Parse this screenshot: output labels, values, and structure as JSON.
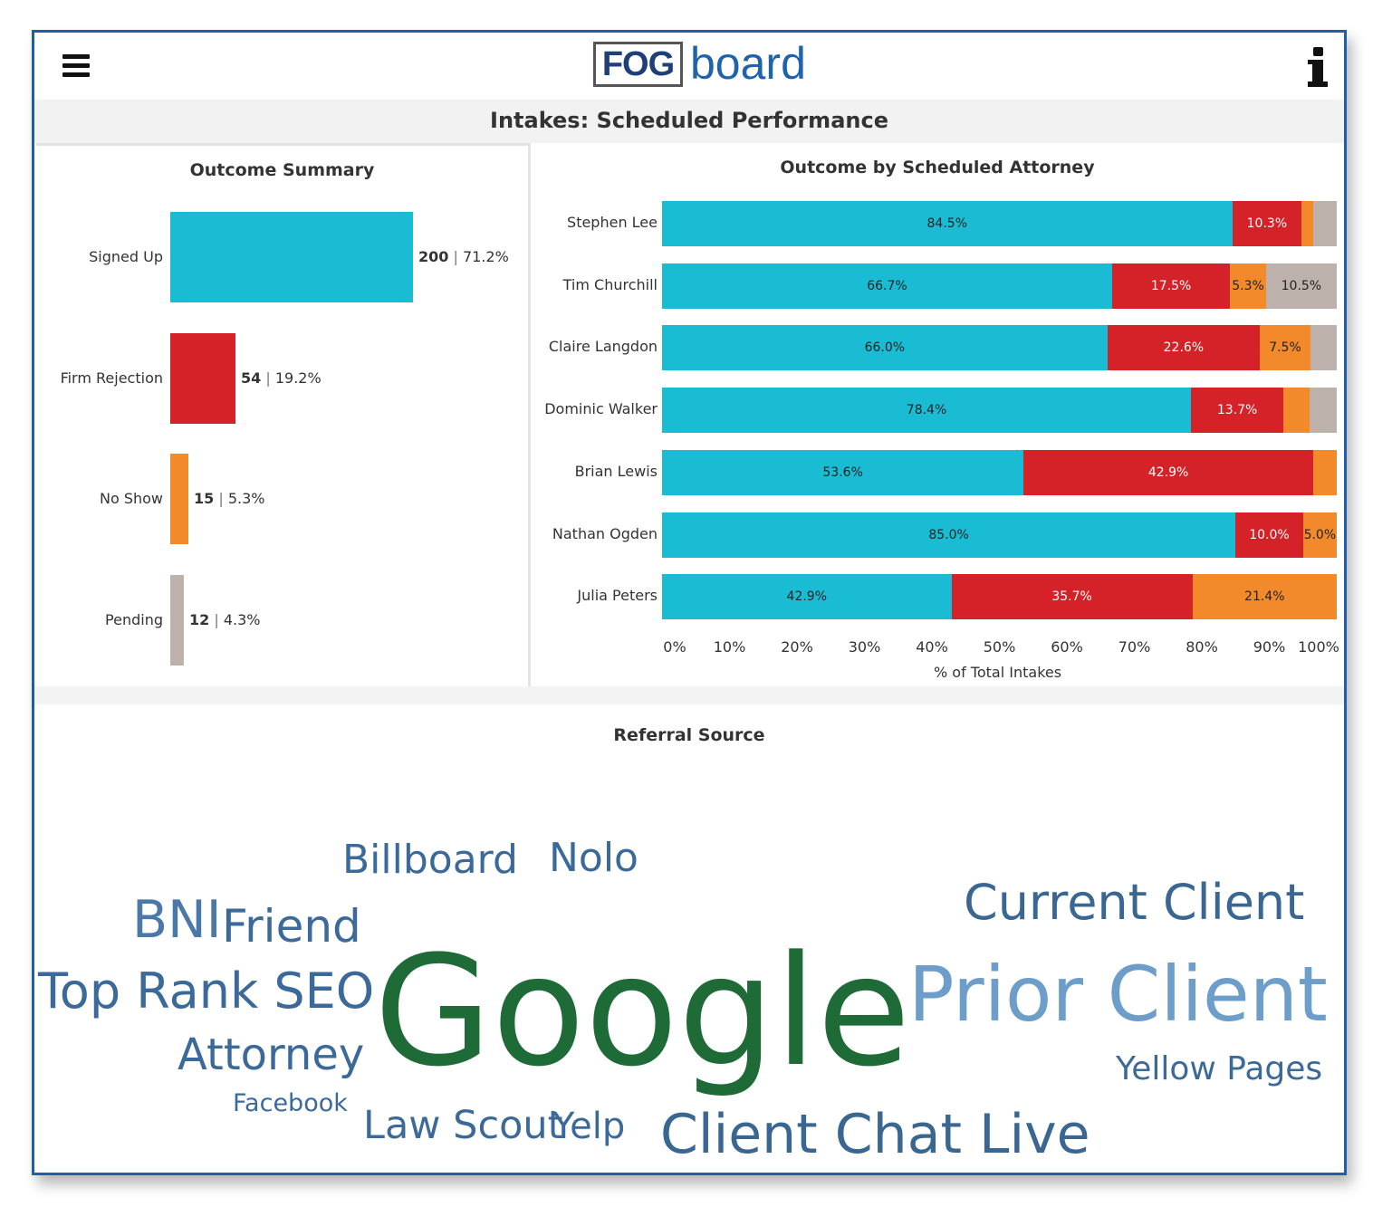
{
  "header": {
    "logo_box_text": "FOG",
    "logo_word": "board",
    "menu_icon": "hamburger-menu-icon",
    "info_icon": "info-icon"
  },
  "page_title": "Intakes: Scheduled Performance",
  "outcome_summary": {
    "title": "Outcome Summary",
    "rows": [
      {
        "label": "Signed Up",
        "count": "200",
        "pct": "71.2%",
        "color": "#19bcd3"
      },
      {
        "label": "Firm Rejection",
        "count": "54",
        "pct": "19.2%",
        "color": "#d52128"
      },
      {
        "label": "No Show",
        "count": "15",
        "pct": "5.3%",
        "color": "#f28a2b"
      },
      {
        "label": "Pending",
        "count": "12",
        "pct": "4.3%",
        "color": "#bdb1ab"
      }
    ]
  },
  "chart_data": [
    {
      "type": "bar",
      "orientation": "horizontal",
      "title": "Outcome Summary",
      "categories": [
        "Signed Up",
        "Firm Rejection",
        "No Show",
        "Pending"
      ],
      "values": [
        200,
        54,
        15,
        12
      ],
      "percents": [
        71.2,
        19.2,
        5.3,
        4.3
      ]
    },
    {
      "type": "bar",
      "orientation": "horizontal",
      "stacked": true,
      "title": "Outcome by Scheduled Attorney",
      "xlabel": "% of Total Intakes",
      "xlim": [
        0,
        100
      ],
      "xticks": [
        "0%",
        "10%",
        "20%",
        "30%",
        "40%",
        "50%",
        "60%",
        "70%",
        "80%",
        "90%",
        "100%"
      ],
      "categories": [
        "Stephen Lee",
        "Tim Churchill",
        "Claire Langdon",
        "Dominic Walker",
        "Brian Lewis",
        "Nathan Ogden",
        "Julia Peters"
      ],
      "series": [
        {
          "color": "#19bcd3",
          "values": [
            84.5,
            66.7,
            66.0,
            78.4,
            53.6,
            85.0,
            42.9
          ],
          "labels": [
            "84.5%",
            "66.7%",
            "66.0%",
            "78.4%",
            "53.6%",
            "85.0%",
            "42.9%"
          ]
        },
        {
          "color": "#d52128",
          "values": [
            10.3,
            17.5,
            22.6,
            13.7,
            42.9,
            10.0,
            35.7
          ],
          "labels": [
            "10.3%",
            "17.5%",
            "22.6%",
            "13.7%",
            "42.9%",
            "10.0%",
            "35.7%"
          ]
        },
        {
          "color": "#f28a2b",
          "values": [
            1.7,
            5.3,
            7.5,
            3.9,
            3.5,
            5.0,
            21.4
          ],
          "labels": [
            "",
            "5.3%",
            "7.5%",
            "",
            "",
            "5.0%",
            "21.4%"
          ]
        },
        {
          "color": "#bdb1ab",
          "values": [
            3.5,
            10.5,
            3.9,
            4.0,
            0,
            0,
            0
          ],
          "labels": [
            "",
            "10.5%",
            "",
            "",
            "",
            "",
            ""
          ]
        }
      ]
    }
  ],
  "referral_source": {
    "title": "Referral Source",
    "words": [
      {
        "text": "Billboard",
        "color": "#3b6a9a"
      },
      {
        "text": "Nolo",
        "color": "#3b6a9a"
      },
      {
        "text": "Current Client",
        "color": "#3a6792"
      },
      {
        "text": "BNI",
        "color": "#4a78a8"
      },
      {
        "text": "Friend",
        "color": "#3b6a9a"
      },
      {
        "text": "Google",
        "color": "#1f6b38"
      },
      {
        "text": "Top Rank SEO",
        "color": "#3b6a9a"
      },
      {
        "text": "Prior Client",
        "color": "#6d9ec9"
      },
      {
        "text": "Attorney",
        "color": "#3b6a9a"
      },
      {
        "text": "Yellow Pages",
        "color": "#3b6a9a"
      },
      {
        "text": "Facebook",
        "color": "#3b6a9a"
      },
      {
        "text": "Law Scout",
        "color": "#3b6a9a"
      },
      {
        "text": "Yelp",
        "color": "#3b6a9a"
      },
      {
        "text": "Client Chat Live",
        "color": "#3a6792"
      }
    ]
  }
}
